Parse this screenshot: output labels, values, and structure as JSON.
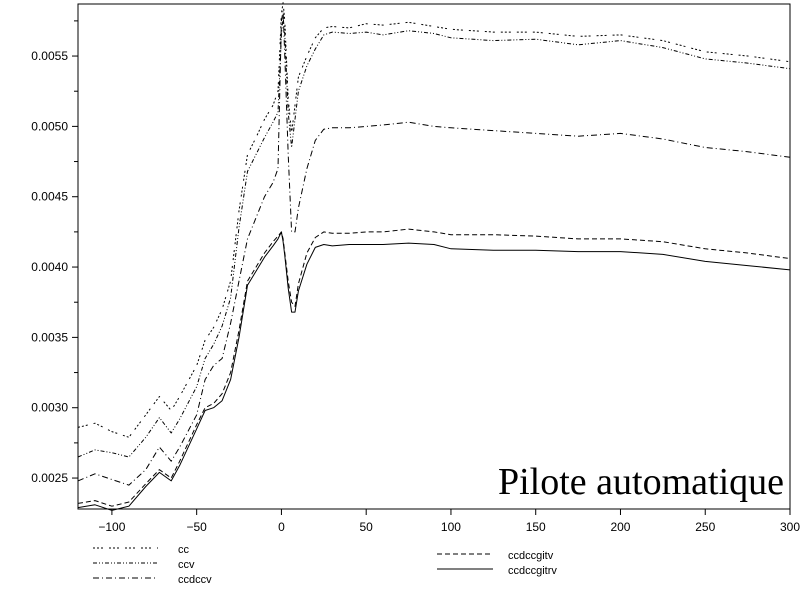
{
  "chart_data": {
    "type": "line",
    "title": "",
    "xlabel": "",
    "ylabel": "",
    "annotation": "Pilote automatique",
    "xlim": [
      -120,
      300
    ],
    "ylim": [
      0.00228,
      0.00587
    ],
    "xticks": [
      -100,
      -50,
      0,
      50,
      100,
      150,
      200,
      250,
      300
    ],
    "xtick_labels": [
      "−100",
      "−50",
      "0",
      "50",
      "100",
      "150",
      "200",
      "250",
      "300"
    ],
    "yticks": [
      0.0025,
      0.003,
      0.0035,
      0.004,
      0.0045,
      0.005,
      0.0055
    ],
    "ytick_labels": [
      "0.0025",
      "0.0030",
      "0.0035",
      "0.0040",
      "0.0045",
      "0.0050",
      "0.0055"
    ],
    "grid": false,
    "legend_position": "below-plot",
    "x": [
      -120,
      -110,
      -100,
      -90,
      -80,
      -72,
      -65,
      -60,
      -50,
      -45,
      -40,
      -35,
      -30,
      -25,
      -20,
      -15,
      -10,
      -5,
      -2,
      0,
      1,
      2,
      4,
      6,
      8,
      10,
      15,
      20,
      25,
      30,
      40,
      50,
      60,
      75,
      90,
      100,
      125,
      150,
      175,
      200,
      225,
      250,
      275,
      300
    ],
    "series": [
      {
        "name": "cc",
        "dash": "2,2,2,2,2,6",
        "values": [
          0.00286,
          0.00289,
          0.00283,
          0.00279,
          0.00295,
          0.00308,
          0.00298,
          0.00308,
          0.0033,
          0.00348,
          0.00357,
          0.0037,
          0.0039,
          0.0044,
          0.0048,
          0.00492,
          0.00505,
          0.00515,
          0.00525,
          0.0058,
          0.00588,
          0.00575,
          0.0052,
          0.00495,
          0.00515,
          0.00535,
          0.0055,
          0.00563,
          0.0057,
          0.00571,
          0.0057,
          0.00573,
          0.00572,
          0.00574,
          0.00571,
          0.00569,
          0.00567,
          0.00567,
          0.00564,
          0.00565,
          0.00561,
          0.00553,
          0.0055,
          0.00546
        ]
      },
      {
        "name": "ccv",
        "dash": "4,2,1,2,1,2",
        "values": [
          0.00265,
          0.0027,
          0.00268,
          0.00265,
          0.00279,
          0.00293,
          0.00282,
          0.00292,
          0.00315,
          0.00335,
          0.00345,
          0.00358,
          0.00378,
          0.00428,
          0.00468,
          0.0048,
          0.00492,
          0.00503,
          0.0051,
          0.00565,
          0.00578,
          0.00565,
          0.0051,
          0.00485,
          0.00505,
          0.00525,
          0.00543,
          0.00555,
          0.00565,
          0.00567,
          0.00566,
          0.00567,
          0.00565,
          0.00568,
          0.00566,
          0.00563,
          0.00561,
          0.00562,
          0.00558,
          0.00561,
          0.00556,
          0.00548,
          0.00545,
          0.00541
        ]
      },
      {
        "name": "ccdccv",
        "dash": "6,3,1,3",
        "values": [
          0.00248,
          0.00253,
          0.00249,
          0.00245,
          0.00256,
          0.00272,
          0.00262,
          0.00272,
          0.00295,
          0.0032,
          0.0033,
          0.00335,
          0.0036,
          0.0039,
          0.0042,
          0.00435,
          0.0045,
          0.0046,
          0.0047,
          0.00575,
          0.00582,
          0.0055,
          0.0048,
          0.00425,
          0.00425,
          0.00442,
          0.0047,
          0.0049,
          0.00498,
          0.00499,
          0.00499,
          0.005,
          0.00501,
          0.00503,
          0.005,
          0.00499,
          0.00497,
          0.00495,
          0.00493,
          0.00495,
          0.00491,
          0.00485,
          0.00482,
          0.00478
        ]
      },
      {
        "name": "ccdccgitv",
        "dash": "5,3",
        "values": [
          0.00232,
          0.00234,
          0.0023,
          0.00233,
          0.00246,
          0.00256,
          0.0025,
          0.00262,
          0.00288,
          0.003,
          0.00303,
          0.0031,
          0.00325,
          0.00355,
          0.0039,
          0.004,
          0.0041,
          0.00418,
          0.00422,
          0.00425,
          0.0042,
          0.0041,
          0.0039,
          0.00375,
          0.00372,
          0.00388,
          0.0041,
          0.00421,
          0.00425,
          0.00424,
          0.00424,
          0.00425,
          0.00425,
          0.00427,
          0.00425,
          0.00423,
          0.00423,
          0.00422,
          0.0042,
          0.0042,
          0.00418,
          0.00413,
          0.0041,
          0.00406
        ]
      },
      {
        "name": "ccdccgitrv",
        "dash": "",
        "values": [
          0.00229,
          0.00231,
          0.00227,
          0.0023,
          0.00244,
          0.00254,
          0.00248,
          0.00259,
          0.00285,
          0.00298,
          0.003,
          0.00305,
          0.0032,
          0.0035,
          0.00387,
          0.00397,
          0.00407,
          0.00415,
          0.0042,
          0.00425,
          0.00418,
          0.00408,
          0.00385,
          0.00368,
          0.00368,
          0.00383,
          0.00402,
          0.00414,
          0.00416,
          0.00415,
          0.00416,
          0.00416,
          0.00416,
          0.00417,
          0.00416,
          0.00413,
          0.00412,
          0.00412,
          0.00411,
          0.00411,
          0.00409,
          0.00404,
          0.00401,
          0.00398
        ]
      }
    ]
  }
}
